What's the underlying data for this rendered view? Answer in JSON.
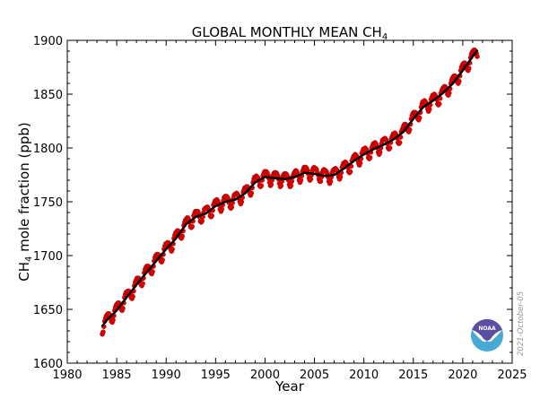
{
  "chart_data": {
    "type": "scatter",
    "title": "GLOBAL MONTHLY MEAN CH",
    "title_subscript": "4",
    "xlabel": "Year",
    "ylabel": "CH",
    "ylabel_subscript": "4",
    "ylabel_suffix": " mole fraction (ppb)",
    "xlim": [
      1980,
      2025
    ],
    "ylim": [
      1600,
      1900
    ],
    "xticks": [
      1980,
      1985,
      1990,
      1995,
      2000,
      2005,
      2010,
      2015,
      2020,
      2025
    ],
    "yticks": [
      1600,
      1650,
      1700,
      1750,
      1800,
      1850,
      1900
    ],
    "grid": false,
    "series": [
      {
        "kind": "monthly",
        "color": "#dd0000",
        "start_year": 1983,
        "start_month": 7,
        "values": [
          1627,
          1629,
          1634,
          1639,
          1642,
          1644,
          1645,
          1646,
          1646,
          1645,
          1642,
          1639,
          1638,
          1640,
          1644,
          1649,
          1652,
          1654,
          1655,
          1656,
          1656,
          1655,
          1653,
          1650,
          1649,
          1651,
          1656,
          1661,
          1664,
          1666,
          1666,
          1667,
          1667,
          1666,
          1664,
          1661,
          1660,
          1662,
          1667,
          1672,
          1675,
          1677,
          1679,
          1679,
          1679,
          1678,
          1676,
          1673,
          1672,
          1674,
          1679,
          1684,
          1687,
          1689,
          1690,
          1690,
          1690,
          1689,
          1687,
          1684,
          1683,
          1685,
          1690,
          1695,
          1698,
          1700,
          1701,
          1701,
          1701,
          1700,
          1698,
          1695,
          1694,
          1696,
          1701,
          1706,
          1709,
          1711,
          1711,
          1712,
          1712,
          1711,
          1709,
          1706,
          1704,
          1706,
          1711,
          1716,
          1719,
          1721,
          1722,
          1723,
          1723,
          1722,
          1720,
          1717,
          1716,
          1718,
          1723,
          1728,
          1731,
          1733,
          1734,
          1735,
          1735,
          1733,
          1731,
          1727,
          1726,
          1727,
          1732,
          1737,
          1739,
          1741,
          1741,
          1741,
          1741,
          1739,
          1736,
          1732,
          1731,
          1732,
          1736,
          1740,
          1743,
          1744,
          1744,
          1745,
          1745,
          1743,
          1741,
          1737,
          1736,
          1737,
          1742,
          1747,
          1749,
          1751,
          1751,
          1752,
          1751,
          1749,
          1747,
          1743,
          1741,
          1743,
          1747,
          1751,
          1754,
          1755,
          1755,
          1755,
          1754,
          1752,
          1749,
          1745,
          1744,
          1745,
          1749,
          1753,
          1756,
          1757,
          1757,
          1758,
          1757,
          1756,
          1753,
          1750,
          1748,
          1750,
          1754,
          1759,
          1761,
          1763,
          1763,
          1764,
          1764,
          1763,
          1761,
          1758,
          1756,
          1758,
          1763,
          1768,
          1771,
          1773,
          1773,
          1774,
          1773,
          1772,
          1769,
          1765,
          1764,
          1765,
          1770,
          1774,
          1776,
          1778,
          1778,
          1778,
          1777,
          1775,
          1772,
          1768,
          1765,
          1766,
          1770,
          1774,
          1776,
          1777,
          1777,
          1777,
          1776,
          1774,
          1771,
          1767,
          1764,
          1765,
          1769,
          1773,
          1775,
          1776,
          1776,
          1776,
          1775,
          1773,
          1770,
          1766,
          1764,
          1765,
          1769,
          1773,
          1775,
          1777,
          1778,
          1779,
          1778,
          1776,
          1774,
          1770,
          1768,
          1770,
          1774,
          1778,
          1780,
          1782,
          1782,
          1782,
          1781,
          1779,
          1776,
          1772,
          1770,
          1771,
          1775,
          1779,
          1781,
          1782,
          1781,
          1781,
          1780,
          1777,
          1775,
          1771,
          1769,
          1769,
          1773,
          1777,
          1779,
          1780,
          1779,
          1779,
          1778,
          1776,
          1773,
          1769,
          1767,
          1769,
          1773,
          1777,
          1779,
          1780,
          1780,
          1781,
          1780,
          1779,
          1776,
          1773,
          1771,
          1773,
          1777,
          1782,
          1784,
          1786,
          1786,
          1787,
          1786,
          1784,
          1782,
          1778,
          1777,
          1778,
          1783,
          1788,
          1790,
          1792,
          1793,
          1794,
          1793,
          1792,
          1789,
          1786,
          1784,
          1786,
          1790,
          1795,
          1797,
          1799,
          1799,
          1800,
          1799,
          1798,
          1795,
          1791,
          1790,
          1791,
          1796,
          1800,
          1802,
          1804,
          1804,
          1805,
          1804,
          1802,
          1800,
          1796,
          1794,
          1796,
          1800,
          1804,
          1807,
          1808,
          1808,
          1809,
          1808,
          1807,
          1804,
          1800,
          1799,
          1800,
          1805,
          1809,
          1811,
          1813,
          1813,
          1814,
          1813,
          1811,
          1809,
          1805,
          1804,
          1805,
          1810,
          1815,
          1817,
          1819,
          1821,
          1822,
          1822,
          1821,
          1819,
          1816,
          1815,
          1817,
          1822,
          1827,
          1830,
          1832,
          1833,
          1833,
          1833,
          1832,
          1830,
          1827,
          1826,
          1828,
          1833,
          1838,
          1841,
          1843,
          1843,
          1844,
          1843,
          1842,
          1839,
          1836,
          1834,
          1836,
          1840,
          1845,
          1847,
          1849,
          1849,
          1850,
          1849,
          1847,
          1845,
          1841,
          1840,
          1841,
          1846,
          1851,
          1853,
          1855,
          1856,
          1857,
          1857,
          1856,
          1853,
          1850,
          1849,
          1851,
          1855,
          1860,
          1863,
          1865,
          1866,
          1867,
          1867,
          1866,
          1864,
          1861,
          1860,
          1862,
          1867,
          1872,
          1875,
          1877,
          1878,
          1879,
          1879,
          1878,
          1876,
          1873,
          1872,
          1874,
          1879,
          1884,
          1887,
          1889,
          1890,
          1891,
          1891,
          1890,
          1888,
          1885
        ]
      },
      {
        "kind": "trend",
        "color": "#000000",
        "x": [
          1983.5,
          1984,
          1985,
          1986,
          1987,
          1988,
          1989,
          1990,
          1991,
          1992,
          1993,
          1994,
          1995,
          1996,
          1997,
          1998,
          1999,
          2000,
          2001,
          2002,
          2003,
          2004,
          2005,
          2006,
          2007,
          2008,
          2009,
          2010,
          2011,
          2012,
          2013,
          2014,
          2015,
          2016,
          2017,
          2018,
          2019,
          2020,
          2021,
          2021.5
        ],
        "y": [
          1634,
          1640,
          1649,
          1661,
          1673,
          1684,
          1695,
          1706,
          1716,
          1729,
          1736,
          1739,
          1746,
          1750,
          1752,
          1758,
          1768,
          1773,
          1772,
          1771,
          1773,
          1777,
          1776,
          1774,
          1775,
          1781,
          1788,
          1794,
          1799,
          1803,
          1808,
          1815,
          1827,
          1838,
          1844,
          1851,
          1860,
          1872,
          1885,
          1891
        ]
      }
    ]
  },
  "date_stamp": "2021-October-05",
  "logo": {
    "text": "NOAA",
    "top_color": "#5b4ea3",
    "bottom_color": "#48a9d2"
  }
}
